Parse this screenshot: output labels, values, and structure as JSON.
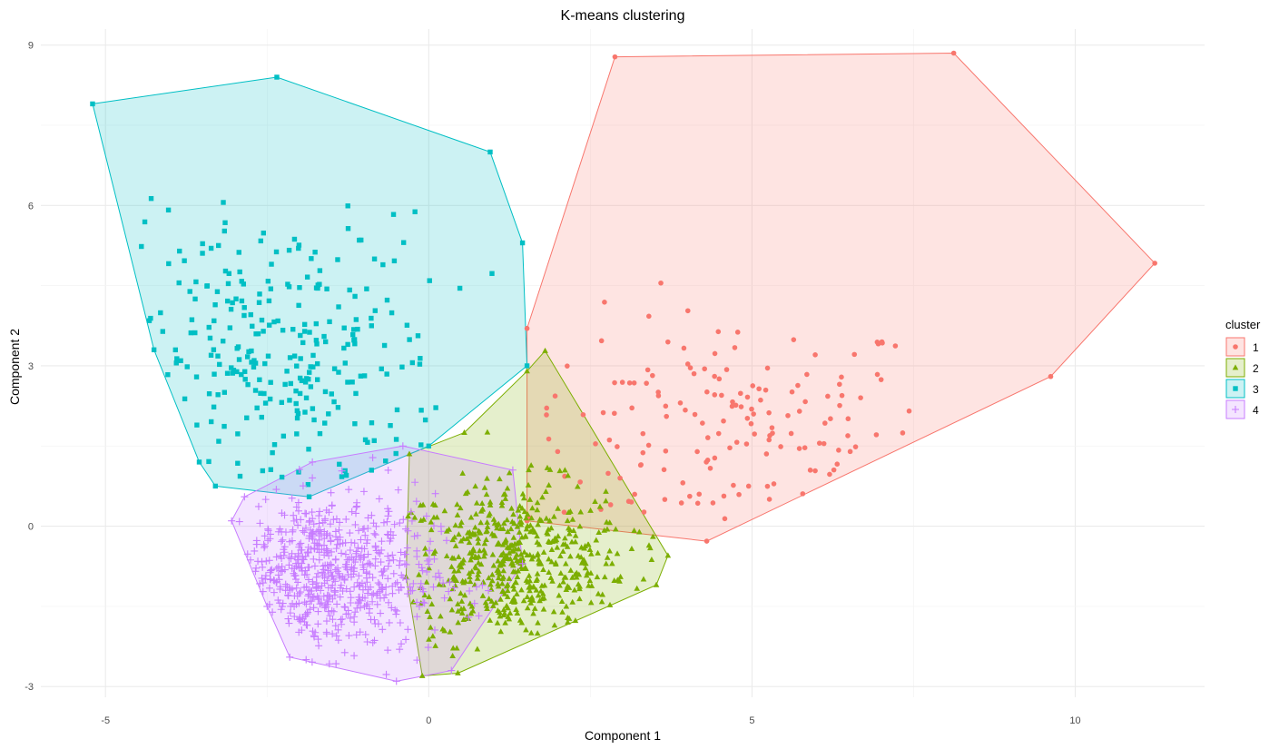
{
  "chart_data": {
    "type": "scatter",
    "title": "K-means clustering",
    "xlabel": "Component 1",
    "ylabel": "Component 2",
    "xlim": [
      -6.0,
      12.0
    ],
    "ylim": [
      -3.2,
      9.3
    ],
    "x_ticks": [
      -5,
      0,
      5,
      10
    ],
    "y_ticks": [
      -3,
      0,
      3,
      6,
      9
    ],
    "grid": true,
    "legend": {
      "title": "cluster",
      "position": "right"
    },
    "series": [
      {
        "name": "1",
        "color": "#F8766D",
        "shape": "circle",
        "hull": [
          [
            1.52,
            3.7
          ],
          [
            2.88,
            8.78
          ],
          [
            8.12,
            8.85
          ],
          [
            11.23,
            4.92
          ],
          [
            9.62,
            2.8
          ],
          [
            4.3,
            -0.28
          ],
          [
            1.52,
            0.1
          ]
        ],
        "center": [
          4.6,
          1.8
        ],
        "spread": [
          1.6,
          1.1
        ],
        "n": 160
      },
      {
        "name": "2",
        "color": "#7CAE00",
        "shape": "triangle",
        "hull": [
          [
            1.8,
            3.28
          ],
          [
            3.7,
            -0.55
          ],
          [
            3.52,
            -1.1
          ],
          [
            0.45,
            -2.75
          ],
          [
            -0.1,
            -2.8
          ],
          [
            -0.35,
            -0.95
          ],
          [
            -0.3,
            1.35
          ],
          [
            0.55,
            1.75
          ],
          [
            1.52,
            2.9
          ]
        ],
        "center": [
          1.3,
          -0.7
        ],
        "spread": [
          0.9,
          0.75
        ],
        "n": 540
      },
      {
        "name": "3",
        "color": "#00BFC4",
        "shape": "square",
        "hull": [
          [
            -5.2,
            7.9
          ],
          [
            -2.35,
            8.4
          ],
          [
            0.95,
            7.0
          ],
          [
            1.45,
            5.3
          ],
          [
            1.52,
            3.0
          ],
          [
            0.0,
            1.5
          ],
          [
            -1.85,
            0.55
          ],
          [
            -3.3,
            0.75
          ],
          [
            -3.55,
            1.2
          ],
          [
            -4.25,
            3.3
          ]
        ],
        "center": [
          -2.3,
          3.1
        ],
        "spread": [
          1.25,
          1.35
        ],
        "n": 270
      },
      {
        "name": "4",
        "color": "#C77CFF",
        "shape": "cross",
        "hull": [
          [
            -0.4,
            1.5
          ],
          [
            1.3,
            1.05
          ],
          [
            1.45,
            -0.7
          ],
          [
            0.35,
            -2.7
          ],
          [
            -0.5,
            -2.9
          ],
          [
            -2.15,
            -2.45
          ],
          [
            -2.5,
            -1.5
          ],
          [
            -3.05,
            0.1
          ],
          [
            -2.85,
            0.55
          ],
          [
            -1.8,
            1.2
          ]
        ],
        "center": [
          -1.6,
          -0.9
        ],
        "spread": [
          0.85,
          0.75
        ],
        "n": 640
      }
    ]
  }
}
